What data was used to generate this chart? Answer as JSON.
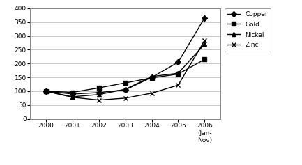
{
  "years": [
    2000,
    2001,
    2002,
    2003,
    2004,
    2005,
    2006
  ],
  "xtick_labels": [
    "2000",
    "2001",
    "2002",
    "2003",
    "2004",
    "2005",
    "2006\n(Jan-\nNov)"
  ],
  "copper": [
    100,
    90,
    95,
    105,
    150,
    205,
    365
  ],
  "gold": [
    100,
    96,
    112,
    130,
    148,
    162,
    215
  ],
  "nickel": [
    100,
    80,
    88,
    107,
    153,
    165,
    270
  ],
  "zinc": [
    100,
    78,
    68,
    75,
    93,
    122,
    283
  ],
  "ylim": [
    0,
    400
  ],
  "yticks": [
    0,
    50,
    100,
    150,
    200,
    250,
    300,
    350,
    400
  ],
  "series_markers": [
    "D",
    "s",
    "^",
    "x"
  ],
  "series_labels": [
    "Copper",
    "Gold",
    "Nickel",
    "Zinc"
  ],
  "background_color": "#ffffff",
  "grid_color": "#c0c0c0",
  "marker_size": 4,
  "line_width": 1.0
}
